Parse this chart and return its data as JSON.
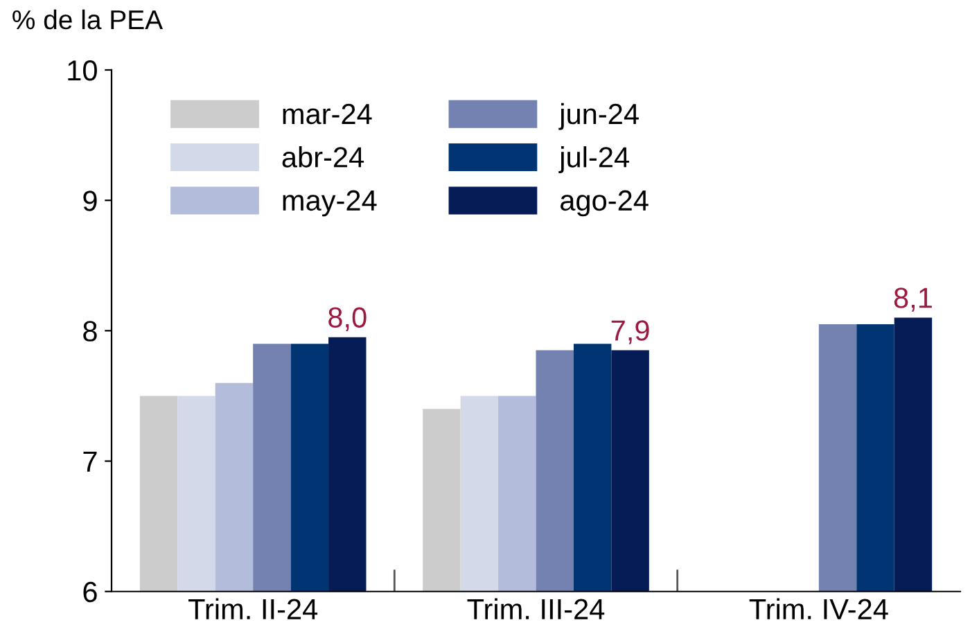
{
  "chart_data": {
    "type": "bar",
    "ylabel": "% de la PEA",
    "categories": [
      "Trim. II-24",
      "Trim. III-24",
      "Trim. IV-24"
    ],
    "series": [
      {
        "name": "mar-24",
        "color": "#cccccc",
        "values": [
          7.5,
          7.4,
          null
        ]
      },
      {
        "name": "abr-24",
        "color": "#d3d9e8",
        "values": [
          7.5,
          7.5,
          null
        ]
      },
      {
        "name": "may-24",
        "color": "#b3bcda",
        "values": [
          7.6,
          7.5,
          null
        ]
      },
      {
        "name": "jun-24",
        "color": "#7382b0",
        "values": [
          7.9,
          7.85,
          8.05
        ]
      },
      {
        "name": "jul-24",
        "color": "#003473",
        "values": [
          7.9,
          7.9,
          8.05
        ]
      },
      {
        "name": "ago-24",
        "color": "#061c56",
        "values": [
          7.95,
          7.85,
          8.1
        ],
        "value_labels": [
          "8,0",
          "7,9",
          "8,1"
        ]
      }
    ],
    "ylim": [
      6,
      10
    ],
    "yticks": [
      6,
      7,
      8,
      9,
      10
    ],
    "grid": false,
    "legend": "top left"
  }
}
